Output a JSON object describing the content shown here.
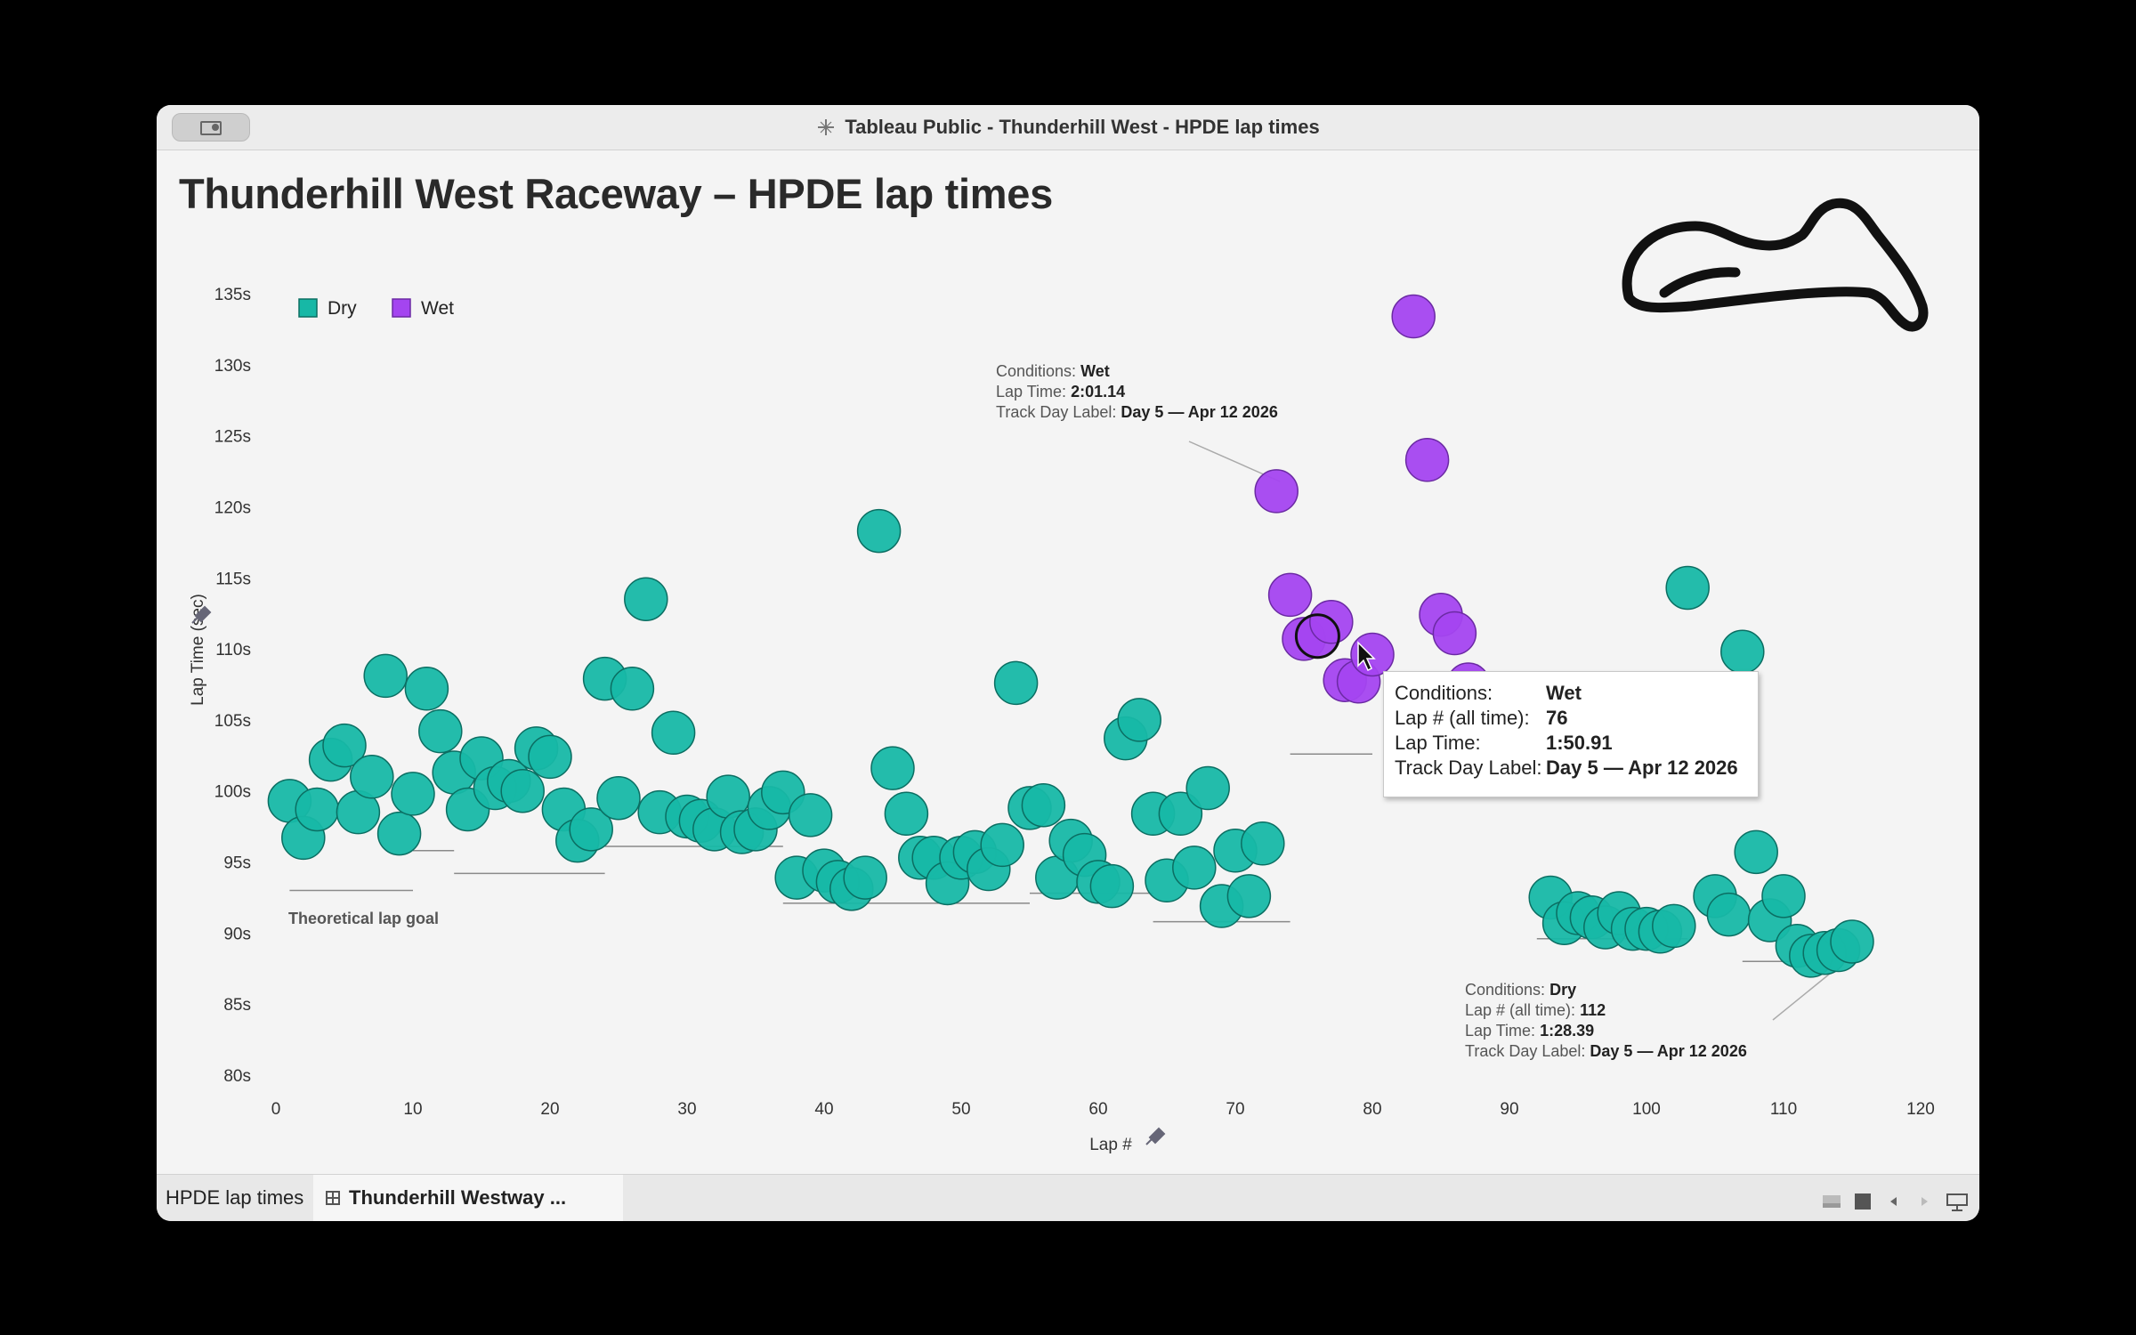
{
  "window": {
    "title": "Tableau Public - Thunderhill West - HPDE lap times"
  },
  "dashboard": {
    "title": "Thunderhill West Raceway – HPDE lap times"
  },
  "tabs": [
    {
      "label": "HPDE lap times"
    },
    {
      "label": "Thunderhill Westway ..."
    }
  ],
  "colors": {
    "dry": "#17b8a6",
    "wet": "#a445f0",
    "dry_stroke": "#0b6e62",
    "wet_stroke": "#6b2aa3"
  },
  "tooltip": {
    "rows": [
      {
        "key": "Conditions:",
        "value": "Wet"
      },
      {
        "key": "Lap # (all time):",
        "value": "76"
      },
      {
        "key": "Lap Time:",
        "value": "1:50.91"
      },
      {
        "key": "Track Day Label:",
        "value": "Day 5 — Apr 12 2026"
      }
    ]
  },
  "annotations": {
    "wet_peak": {
      "conditions_key": "Conditions:",
      "conditions": "Wet",
      "laptime_key": "Lap Time:",
      "laptime": "2:01.14",
      "trackday_key": "Track Day Label:",
      "trackday": "Day 5 — Apr 12 2026"
    },
    "dry_best": {
      "conditions_key": "Conditions:",
      "conditions": "Dry",
      "lap_key": "Lap # (all time):",
      "lap": "112",
      "laptime_key": "Lap Time:",
      "laptime": "1:28.39",
      "trackday_key": "Track Day Label:",
      "trackday": "Day 5 — Apr 12 2026"
    },
    "goal_label": "Theoretical lap goal"
  },
  "chart_data": {
    "type": "scatter",
    "xlabel": "Lap #",
    "ylabel": "Lap Time (sec)",
    "xlim": [
      0,
      120
    ],
    "ylim": [
      80,
      135
    ],
    "x_ticks": [
      "0",
      "10",
      "20",
      "30",
      "40",
      "50",
      "60",
      "70",
      "80",
      "90",
      "100",
      "110",
      "120"
    ],
    "y_ticks": [
      {
        "value": 135,
        "label": "135s"
      },
      {
        "value": 130,
        "label": "130s"
      },
      {
        "value": 125,
        "label": "125s"
      },
      {
        "value": 120,
        "label": "120s"
      },
      {
        "value": 115,
        "label": "115s"
      },
      {
        "value": 110,
        "label": "110s"
      },
      {
        "value": 105,
        "label": "105s"
      },
      {
        "value": 100,
        "label": "100s"
      },
      {
        "value": 95,
        "label": "95s"
      },
      {
        "value": 90,
        "label": "90s"
      },
      {
        "value": 85,
        "label": "85s"
      },
      {
        "value": 80,
        "label": "80s"
      }
    ],
    "legend": [
      "Dry",
      "Wet"
    ],
    "legend_position": "top-left",
    "grid": false,
    "series": [
      {
        "name": "Dry",
        "points": [
          [
            1,
            99.3
          ],
          [
            2,
            96.7
          ],
          [
            3,
            98.7
          ],
          [
            4,
            102.2
          ],
          [
            5,
            103.2
          ],
          [
            6,
            98.5
          ],
          [
            7,
            101
          ],
          [
            8,
            108.1
          ],
          [
            9,
            97
          ],
          [
            10,
            99.8
          ],
          [
            11,
            107.2
          ],
          [
            12,
            104.2
          ],
          [
            13,
            101.3
          ],
          [
            14,
            98.7
          ],
          [
            15,
            102.3
          ],
          [
            16,
            100.2
          ],
          [
            17,
            100.7
          ],
          [
            18,
            100
          ],
          [
            19,
            103
          ],
          [
            20,
            102.4
          ],
          [
            21,
            98.7
          ],
          [
            22,
            96.5
          ],
          [
            23,
            97.3
          ],
          [
            24,
            107.9
          ],
          [
            25,
            99.5
          ],
          [
            26,
            107.2
          ],
          [
            27,
            113.5
          ],
          [
            28,
            98.5
          ],
          [
            29,
            104.1
          ],
          [
            30,
            98.2
          ],
          [
            31,
            97.9
          ],
          [
            32,
            97.3
          ],
          [
            33,
            99.6
          ],
          [
            34,
            97.1
          ],
          [
            35,
            97.3
          ],
          [
            36,
            98.8
          ],
          [
            37,
            99.9
          ],
          [
            38,
            93.9
          ],
          [
            39,
            98.3
          ],
          [
            40,
            94.4
          ],
          [
            41,
            93.6
          ],
          [
            42,
            93.1
          ],
          [
            43,
            93.9
          ],
          [
            44,
            118.3
          ],
          [
            45,
            101.6
          ],
          [
            46,
            98.4
          ],
          [
            47,
            95.3
          ],
          [
            48,
            95.3
          ],
          [
            49,
            93.5
          ],
          [
            50,
            95.3
          ],
          [
            51,
            95.7
          ],
          [
            52,
            94.5
          ],
          [
            53,
            96.2
          ],
          [
            54,
            107.6
          ],
          [
            55,
            98.8
          ],
          [
            56,
            99
          ],
          [
            57,
            93.9
          ],
          [
            58,
            96.5
          ],
          [
            59,
            95.5
          ],
          [
            60,
            93.6
          ],
          [
            61,
            93.3
          ],
          [
            62,
            103.7
          ],
          [
            63,
            105
          ],
          [
            64,
            98.4
          ],
          [
            65,
            93.7
          ],
          [
            66,
            98.4
          ],
          [
            67,
            94.6
          ],
          [
            68,
            100.2
          ],
          [
            69,
            91.9
          ],
          [
            70,
            95.8
          ],
          [
            71,
            92.6
          ],
          [
            72,
            96.3
          ],
          [
            93,
            92.5
          ],
          [
            94,
            90.7
          ],
          [
            95,
            91.4
          ],
          [
            96,
            91.1
          ],
          [
            97,
            90.4
          ],
          [
            98,
            91.4
          ],
          [
            99,
            90.3
          ],
          [
            100,
            90.3
          ],
          [
            101,
            90.1
          ],
          [
            102,
            90.5
          ],
          [
            103,
            114.3
          ],
          [
            105,
            92.6
          ],
          [
            106,
            91.3
          ],
          [
            107,
            109.8
          ],
          [
            108,
            95.7
          ],
          [
            109,
            90.9
          ],
          [
            110,
            92.6
          ],
          [
            111,
            89.1
          ],
          [
            112,
            88.4
          ],
          [
            113,
            88.6
          ],
          [
            114,
            88.8
          ],
          [
            115,
            89.4
          ]
        ]
      },
      {
        "name": "Wet",
        "points": [
          [
            73,
            121.1
          ],
          [
            74,
            113.8
          ],
          [
            75,
            110.7
          ],
          [
            76,
            110.9
          ],
          [
            77,
            111.9
          ],
          [
            78,
            107.8
          ],
          [
            79,
            107.7
          ],
          [
            80,
            109.6
          ],
          [
            83,
            133.4
          ],
          [
            84,
            123.3
          ],
          [
            85,
            112.4
          ],
          [
            86,
            111.1
          ],
          [
            87,
            107.5
          ]
        ]
      }
    ],
    "goal_segments": [
      {
        "x": [
          1,
          10
        ],
        "y": 93.0
      },
      {
        "x": [
          10,
          13
        ],
        "y": 95.8
      },
      {
        "x": [
          13,
          24
        ],
        "y": 94.2
      },
      {
        "x": [
          24,
          37
        ],
        "y": 96.1
      },
      {
        "x": [
          37,
          55
        ],
        "y": 92.1
      },
      {
        "x": [
          55,
          64
        ],
        "y": 92.8
      },
      {
        "x": [
          64,
          74
        ],
        "y": 90.8
      },
      {
        "x": [
          74,
          80
        ],
        "y": 102.6
      },
      {
        "x": [
          92,
          103
        ],
        "y": 89.6
      },
      {
        "x": [
          107,
          111
        ],
        "y": 88.0
      }
    ]
  }
}
